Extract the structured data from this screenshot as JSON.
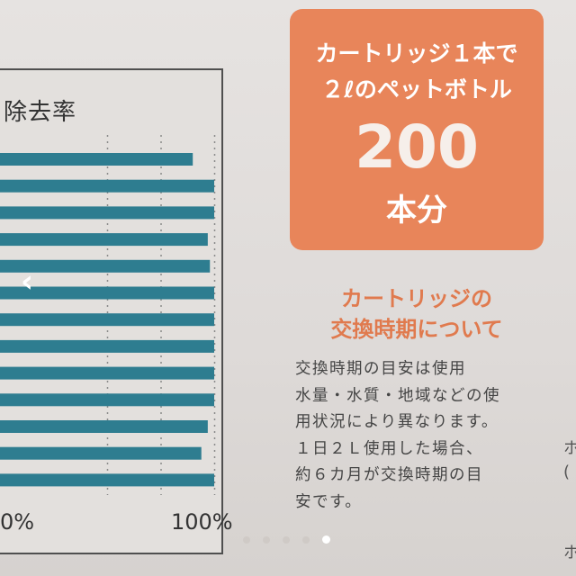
{
  "chart_data": {
    "type": "bar",
    "title": "除去率",
    "orientation": "horizontal",
    "values": [
      90,
      100,
      100,
      97,
      98,
      100,
      100,
      100,
      100,
      100,
      97,
      94,
      100
    ],
    "x_range": [
      0,
      100
    ],
    "tick_labels": [
      "0%",
      "100%"
    ],
    "bar_color": "#2e7d90"
  },
  "promo": {
    "line1": "カートリッジ１本で",
    "line2": "２ℓのペットボトル",
    "number": "200",
    "unit": "本分",
    "box_color": "#e8855a"
  },
  "section": {
    "heading1": "カートリッジの",
    "heading2": "交換時期について",
    "body_lines": [
      "交換時期の目安は使用",
      "水量・水質・地域などの使",
      "用状況により異なります。",
      "１日２Ｌ使用した場合、",
      "約６カ月が交換時期の目",
      "安です。"
    ]
  },
  "edge": {
    "c1": "ホ",
    "c2": "(",
    "c3": "ホ"
  },
  "carousel": {
    "prev_glyph": "‹",
    "slide_count": 5,
    "active_index": 4
  }
}
